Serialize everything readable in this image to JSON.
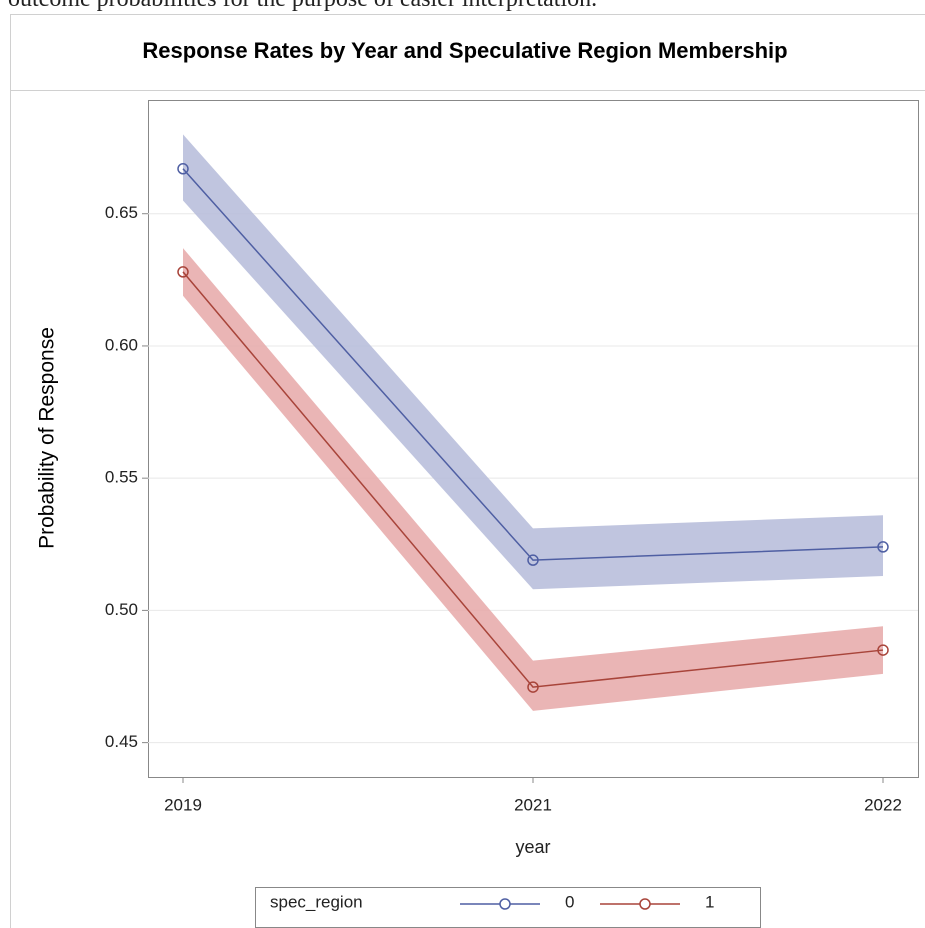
{
  "intro_text": "outcome probabilities for the purpose of easier interpretation.",
  "chart_data": {
    "type": "line",
    "title": "Response Rates by Year and Speculative Region Membership",
    "x_label": "year",
    "y_label": "Probability of Response",
    "categories": [
      "2019",
      "2021",
      "2022"
    ],
    "legend_title": "spec_region",
    "series": [
      {
        "name": "0",
        "color": "#4f5fa3",
        "band_color": "#b5bbd9",
        "values": [
          0.667,
          0.519,
          0.524
        ],
        "lower": [
          0.655,
          0.508,
          0.513
        ],
        "upper": [
          0.68,
          0.531,
          0.536
        ]
      },
      {
        "name": "1",
        "color": "#a8443a",
        "band_color": "#e6a8a8",
        "values": [
          0.628,
          0.471,
          0.485
        ],
        "lower": [
          0.619,
          0.462,
          0.476
        ],
        "upper": [
          0.637,
          0.481,
          0.494
        ]
      }
    ],
    "ylim": [
      0.437,
      0.693
    ],
    "yticks": [
      0.45,
      {
        "value": 0.5,
        "label": "0.50"
      },
      0.55,
      {
        "value": 0.6,
        "label": "0.60"
      },
      0.65
    ],
    "grid": true,
    "legend_position": "bottom"
  }
}
